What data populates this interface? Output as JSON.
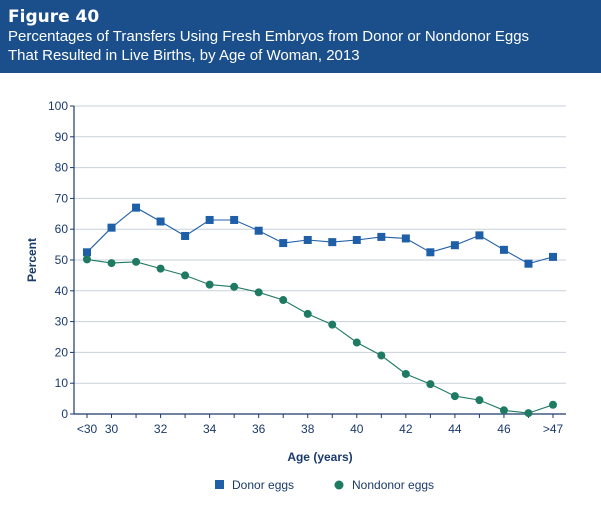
{
  "header": {
    "figure_label": "Figure 40",
    "title_line1": "Percentages of Transfers Using Fresh Embryos from Donor or Nondonor Eggs",
    "title_line2": "That Resulted in Live Births, by Age of Woman, 2013"
  },
  "colors": {
    "header_bg": "#1a4f8c",
    "donor": "#1f5fa8",
    "nondonor": "#1e7a63",
    "grid": "#c9d1dc",
    "axis": "#1a3a6b"
  },
  "chart_data": {
    "type": "line",
    "xlabel": "Age (years)",
    "ylabel": "Percent",
    "ylim": [
      0,
      100
    ],
    "y_ticks": [
      "0",
      "10",
      "20",
      "30",
      "40",
      "50",
      "60",
      "70",
      "80",
      "90",
      "100"
    ],
    "x_tick_labels": [
      {
        "age": 29,
        "label": "<30"
      },
      {
        "age": 30,
        "label": "30"
      },
      {
        "age": 32,
        "label": "32"
      },
      {
        "age": 34,
        "label": "34"
      },
      {
        "age": 36,
        "label": "36"
      },
      {
        "age": 38,
        "label": "38"
      },
      {
        "age": 40,
        "label": "40"
      },
      {
        "age": 42,
        "label": "42"
      },
      {
        "age": 44,
        "label": "44"
      },
      {
        "age": 46,
        "label": "46"
      },
      {
        "age": 48,
        "label": ">47"
      }
    ],
    "grid": true,
    "legend_position": "bottom",
    "x": [
      "<30",
      "30",
      "31",
      "32",
      "33",
      "34",
      "35",
      "36",
      "37",
      "38",
      "39",
      "40",
      "41",
      "42",
      "43",
      "44",
      "45",
      "46",
      "47",
      ">47"
    ],
    "series": [
      {
        "name": "Donor eggs",
        "marker": "square",
        "values": [
          52.5,
          60.5,
          67,
          62.5,
          57.8,
          63,
          63,
          59.5,
          55.5,
          56.5,
          55.8,
          56.5,
          57.5,
          57,
          52.5,
          54.8,
          58,
          53.3,
          48.8,
          51
        ]
      },
      {
        "name": "Nondonor eggs",
        "marker": "circle",
        "values": [
          50.2,
          49,
          49.4,
          47.2,
          45,
          42,
          41.3,
          39.5,
          37,
          32.5,
          29,
          23.2,
          19,
          13,
          9.7,
          5.8,
          4.5,
          1.2,
          0.3,
          3
        ]
      }
    ]
  }
}
